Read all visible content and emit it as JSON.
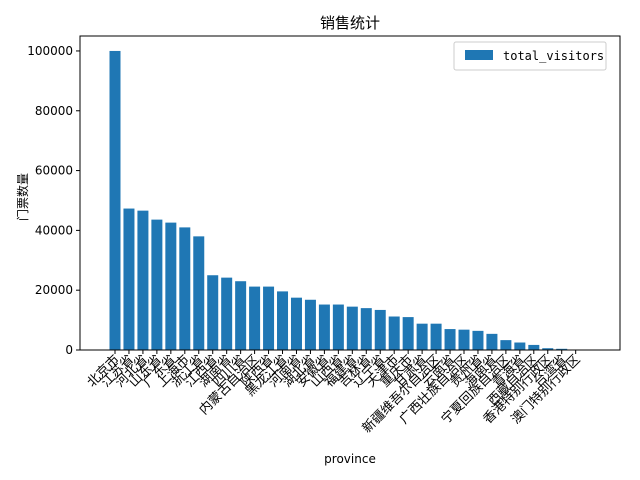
{
  "chart_data": {
    "type": "bar",
    "title": "销售统计",
    "xlabel": "province",
    "ylabel": "门票数量",
    "ylim": [
      0,
      105000
    ],
    "yticks": [
      0,
      20000,
      40000,
      60000,
      80000,
      100000
    ],
    "legend_position": "top-right",
    "grid": false,
    "series": [
      {
        "name": "total_visitors",
        "color": "#1f77b4",
        "values": [
          100000,
          47300,
          46600,
          43600,
          42600,
          41000,
          38000,
          25000,
          24200,
          23000,
          21200,
          21200,
          19600,
          17500,
          16800,
          15200,
          15200,
          14500,
          14000,
          13400,
          11200,
          11000,
          8800,
          8800,
          7000,
          6800,
          6400,
          5400,
          3300,
          2500,
          1700,
          600,
          400,
          100
        ]
      }
    ],
    "categories": [
      "北京市",
      "江苏省",
      "河北省",
      "山东省",
      "广东省",
      "上海市",
      "浙江省",
      "江西省",
      "湖南省",
      "四川省",
      "内蒙古自治区",
      "陕西省",
      "黑龙江省",
      "河南省",
      "湖北省",
      "安徽省",
      "山西省",
      "福建省",
      "吉林省",
      "辽宁省",
      "天津市",
      "重庆市",
      "甘肃省",
      "新疆维吾尔自治区",
      "云南省",
      "广西壮族自治区",
      "贵州省",
      "海南省",
      "宁夏回族自治区",
      "青海省",
      "西藏自治区",
      "香港特别行政区",
      "台湾省",
      "澳门特别行政区"
    ]
  }
}
